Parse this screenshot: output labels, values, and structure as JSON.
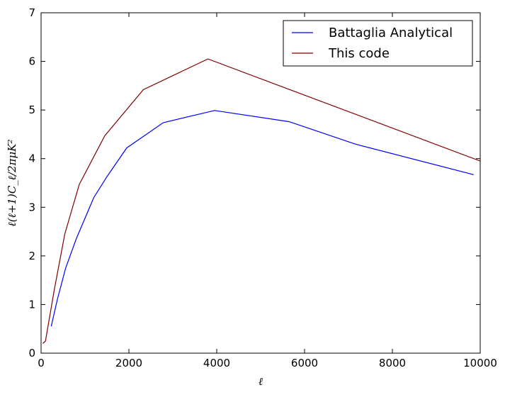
{
  "chart_data": {
    "type": "line",
    "title": "",
    "xlabel": "ℓ",
    "ylabel": "ℓ(ℓ+1)C_ℓ/2πμK²",
    "xlim": [
      0,
      10000
    ],
    "ylim": [
      0,
      7
    ],
    "xticks": [
      0,
      2000,
      4000,
      6000,
      8000,
      10000
    ],
    "yticks": [
      0,
      1,
      2,
      3,
      4,
      5,
      6,
      7
    ],
    "xtick_labels": [
      "0",
      "2000",
      "4000",
      "6000",
      "8000",
      "10000"
    ],
    "ytick_labels": [
      "0",
      "1",
      "2",
      "3",
      "4",
      "5",
      "6",
      "7"
    ],
    "grid": false,
    "legend_position": "top-right",
    "series": [
      {
        "name": "Battaglia Analytical",
        "color": "#0000ff",
        "x": [
          230,
          370,
          560,
          800,
          1200,
          1500,
          1950,
          2780,
          3950,
          5650,
          7150,
          9850
        ],
        "y": [
          0.55,
          1.1,
          1.75,
          2.35,
          3.2,
          3.63,
          4.22,
          4.74,
          4.99,
          4.76,
          4.3,
          3.67
        ]
      },
      {
        "name": "This code",
        "color": "#800000",
        "x": [
          40,
          100,
          300,
          540,
          870,
          1450,
          2330,
          3800,
          10000
        ],
        "y": [
          0.2,
          0.25,
          1.3,
          2.45,
          3.47,
          4.47,
          5.42,
          6.05,
          3.95
        ]
      }
    ]
  }
}
